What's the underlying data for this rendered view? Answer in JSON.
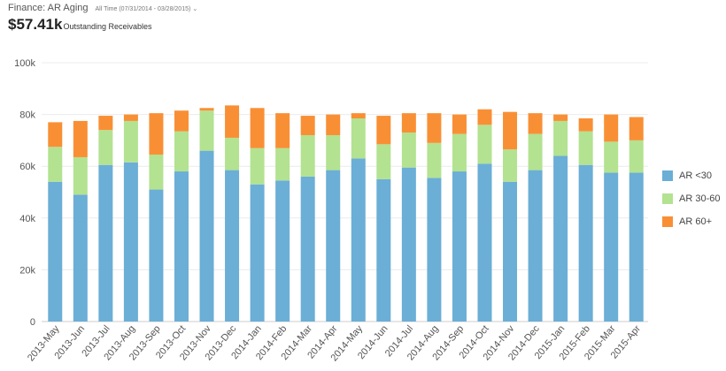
{
  "header": {
    "title": "Finance: AR Aging",
    "range_label": "All Time (07/31/2014 - 03/28/2015)",
    "range_chevron": "⌄",
    "kpi_value": "$57.41k",
    "kpi_label": "Outstanding Receivables"
  },
  "chart_data": {
    "type": "bar",
    "stacked": true,
    "categories": [
      "2013-May",
      "2013-Jun",
      "2013-Jul",
      "2013-Aug",
      "2013-Sep",
      "2013-Oct",
      "2013-Nov",
      "2013-Dec",
      "2014-Jan",
      "2014-Feb",
      "2014-Mar",
      "2014-Apr",
      "2014-May",
      "2014-Jun",
      "2014-Jul",
      "2014-Aug",
      "2014-Sep",
      "2014-Oct",
      "2014-Nov",
      "2014-Dec",
      "2015-Jan",
      "2015-Feb",
      "2015-Mar",
      "2015-Apr"
    ],
    "series": [
      {
        "name": "AR <30",
        "color": "#6baed6",
        "values": [
          54000,
          49000,
          60500,
          61500,
          51000,
          58000,
          66000,
          58500,
          53000,
          54500,
          56000,
          58500,
          63000,
          55000,
          59500,
          55500,
          58000,
          61000,
          54000,
          58500,
          64000,
          60500,
          57500,
          57500
        ]
      },
      {
        "name": "AR 30-60",
        "color": "#b3e291",
        "values": [
          13500,
          14500,
          13500,
          16000,
          13500,
          15500,
          15500,
          12500,
          14000,
          12500,
          16000,
          13500,
          15500,
          13500,
          13500,
          13500,
          14500,
          15000,
          12500,
          14000,
          13500,
          13000,
          12000,
          12500
        ]
      },
      {
        "name": "AR 60+",
        "color": "#f98f35",
        "values": [
          9500,
          14000,
          5500,
          2500,
          16000,
          8000,
          1000,
          12500,
          15500,
          13500,
          7500,
          8000,
          2000,
          11000,
          7500,
          11500,
          7500,
          6000,
          14500,
          8000,
          2500,
          5000,
          10500,
          9000
        ]
      }
    ],
    "y_ticks": [
      "0",
      "20k",
      "40k",
      "60k",
      "80k",
      "100k"
    ],
    "ylim": [
      0,
      100000
    ],
    "grid": true,
    "legend_position": "right"
  }
}
